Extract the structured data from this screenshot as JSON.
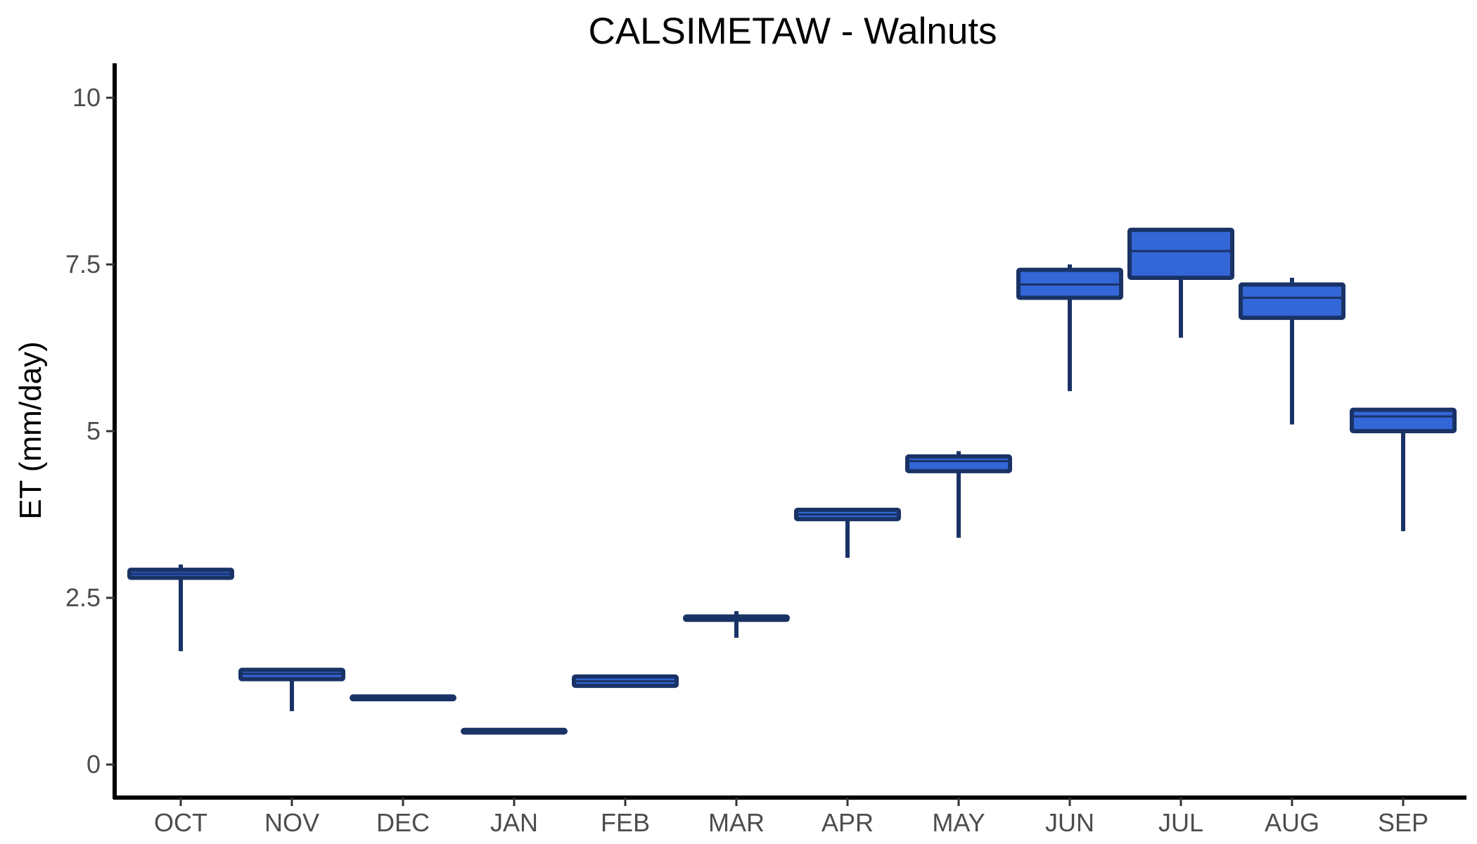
{
  "chart_data": {
    "type": "boxplot",
    "title": "CALSIMETAW - Walnuts",
    "xlabel": "",
    "ylabel": "ET (mm/day)",
    "ylim": [
      -0.5,
      10.5
    ],
    "yticks": [
      0,
      2.5,
      5,
      7.5,
      10
    ],
    "ytick_labels": [
      "0",
      "2.5",
      "5",
      "7.5",
      "10"
    ],
    "grid": false,
    "legend": "none",
    "colors": {
      "box_fill": "#3366d6",
      "box_stroke": "#1a3366",
      "axis": "#000000"
    },
    "categories": [
      "OCT",
      "NOV",
      "DEC",
      "JAN",
      "FEB",
      "MAR",
      "APR",
      "MAY",
      "JUN",
      "JUL",
      "AUG",
      "SEP"
    ],
    "boxes": [
      {
        "min": 1.7,
        "q1": 2.8,
        "median": 2.86,
        "q3": 2.92,
        "max": 3.0
      },
      {
        "min": 0.8,
        "q1": 1.28,
        "median": 1.36,
        "q3": 1.42,
        "max": 1.42
      },
      {
        "min": 0.98,
        "q1": 0.98,
        "median": 1.0,
        "q3": 1.02,
        "max": 1.02
      },
      {
        "min": 0.48,
        "q1": 0.48,
        "median": 0.5,
        "q3": 0.52,
        "max": 0.52
      },
      {
        "min": 1.18,
        "q1": 1.18,
        "median": 1.25,
        "q3": 1.32,
        "max": 1.32
      },
      {
        "min": 1.9,
        "q1": 2.17,
        "median": 2.2,
        "q3": 2.22,
        "max": 2.3
      },
      {
        "min": 3.1,
        "q1": 3.68,
        "median": 3.75,
        "q3": 3.82,
        "max": 3.82
      },
      {
        "min": 3.4,
        "q1": 4.4,
        "median": 4.55,
        "q3": 4.62,
        "max": 4.7
      },
      {
        "min": 5.6,
        "q1": 7.0,
        "median": 7.2,
        "q3": 7.42,
        "max": 7.5
      },
      {
        "min": 6.4,
        "q1": 7.3,
        "median": 7.7,
        "q3": 8.02,
        "max": 8.02
      },
      {
        "min": 5.1,
        "q1": 6.7,
        "median": 7.0,
        "q3": 7.2,
        "max": 7.3
      },
      {
        "min": 3.5,
        "q1": 5.0,
        "median": 5.22,
        "q3": 5.32,
        "max": 5.32
      }
    ]
  }
}
